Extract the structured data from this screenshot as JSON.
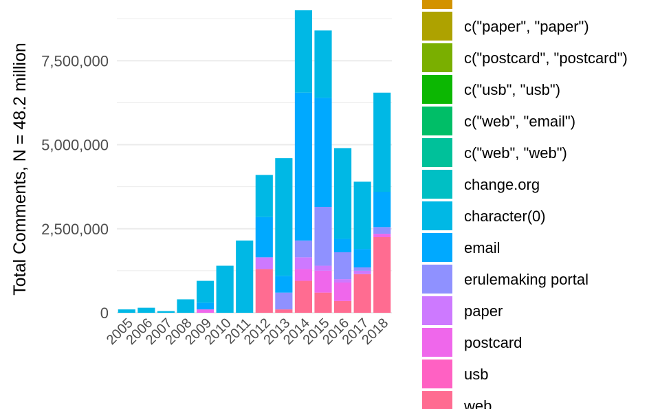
{
  "chart_data": {
    "type": "bar",
    "stacked": true,
    "title": "",
    "xlabel": "",
    "ylabel": "Total Comments, N = 48.2 million",
    "categories": [
      "2005",
      "2006",
      "2007",
      "2008",
      "2009",
      "2010",
      "2011",
      "2012",
      "2013",
      "2014",
      "2015",
      "2016",
      "2017",
      "2018"
    ],
    "y_ticks": [
      0,
      2500000,
      5000000,
      7500000
    ],
    "y_tick_labels": [
      "0",
      "2,500,000",
      "5,000,000",
      "7,500,000"
    ],
    "ylim": [
      0,
      9000000
    ],
    "grid": true,
    "legend_position": "right",
    "series": [
      {
        "name": "web",
        "color": "#FF6C91",
        "values": [
          0,
          0,
          0,
          0,
          0,
          0,
          0,
          1300000,
          100000,
          950000,
          600000,
          350000,
          1150000,
          2250000
        ]
      },
      {
        "name": "usb",
        "color": "#FF61C3",
        "values": [
          0,
          0,
          0,
          0,
          0,
          0,
          0,
          0,
          0,
          0,
          0,
          0,
          0,
          0
        ]
      },
      {
        "name": "postcard",
        "color": "#EF67EB",
        "values": [
          0,
          0,
          0,
          0,
          100000,
          0,
          0,
          0,
          0,
          350000,
          650000,
          550000,
          0,
          100000
        ]
      },
      {
        "name": "paper",
        "color": "#CD79FF",
        "values": [
          0,
          0,
          0,
          0,
          0,
          0,
          0,
          350000,
          0,
          350000,
          150000,
          100000,
          100000,
          0
        ]
      },
      {
        "name": "erulemaking portal",
        "color": "#8F91FF",
        "values": [
          0,
          0,
          0,
          0,
          0,
          0,
          0,
          0,
          500000,
          500000,
          1750000,
          800000,
          100000,
          200000
        ]
      },
      {
        "name": "email",
        "color": "#00A9FF",
        "values": [
          0,
          0,
          0,
          0,
          200000,
          0,
          0,
          1200000,
          500000,
          4400000,
          3250000,
          400000,
          550000,
          1050000
        ]
      },
      {
        "name": "character(0)",
        "color": "#00B8E5",
        "values": [
          100000,
          150000,
          50000,
          400000,
          650000,
          1400000,
          2150000,
          1250000,
          3500000,
          2450000,
          2000000,
          2700000,
          2000000,
          2950000
        ]
      }
    ],
    "legend_entries": [
      {
        "label": "c(\"paper\", \"paper\")",
        "color": "#AEA200"
      },
      {
        "label": "c(\"postcard\", \"postcard\")",
        "color": "#7AAF00"
      },
      {
        "label": "c(\"usb\", \"usb\")",
        "color": "#0CB702"
      },
      {
        "label": "c(\"web\", \"email\")",
        "color": "#00BE67"
      },
      {
        "label": "c(\"web\", \"web\")",
        "color": "#00C19A"
      },
      {
        "label": "change.org",
        "color": "#00BFC4"
      },
      {
        "label": "character(0)",
        "color": "#00B8E5"
      },
      {
        "label": "email",
        "color": "#00A9FF"
      },
      {
        "label": "erulemaking portal",
        "color": "#8F91FF"
      },
      {
        "label": "paper",
        "color": "#CD79FF"
      },
      {
        "label": "postcard",
        "color": "#EF67EB"
      },
      {
        "label": "usb",
        "color": "#FF61C3"
      },
      {
        "label": "web",
        "color": "#FF6C91"
      }
    ],
    "legend_cut_top_color": "#D39200"
  }
}
